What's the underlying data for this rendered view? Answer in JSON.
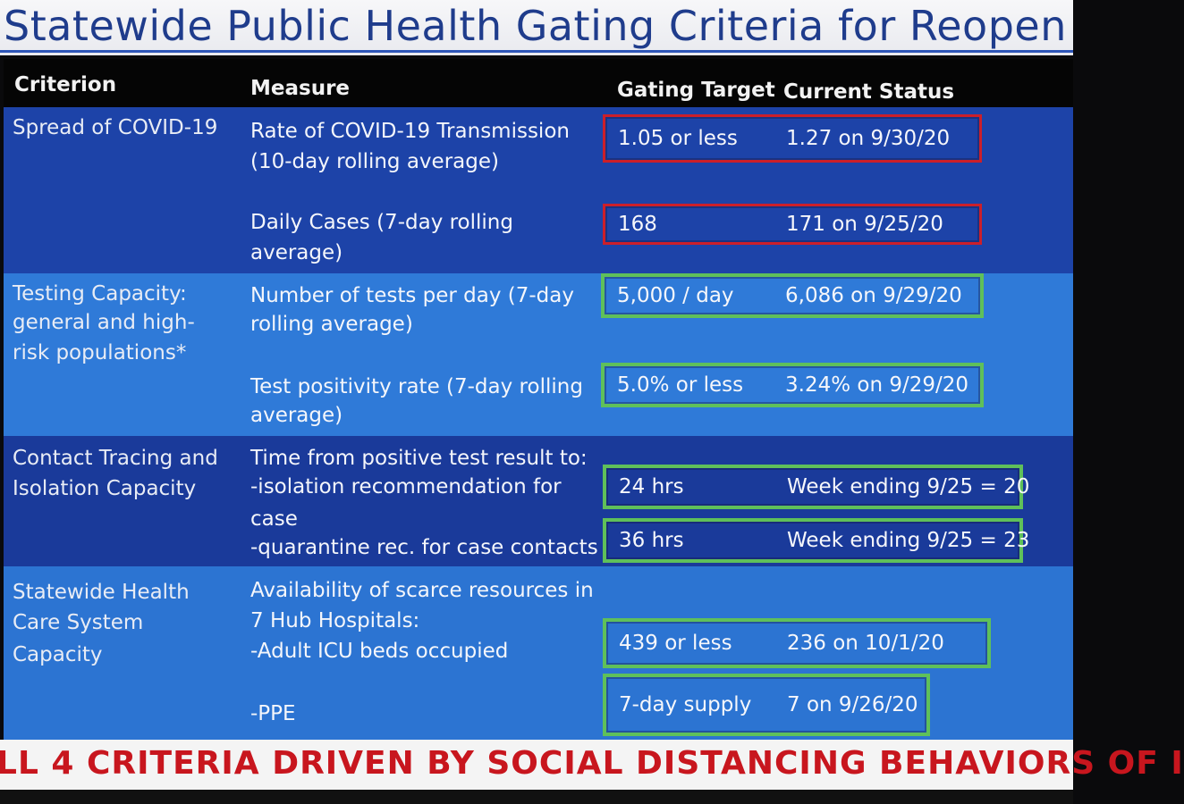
{
  "title": "Statewide Public Health Gating Criteria for Reopen",
  "headers": {
    "criterion": "Criterion",
    "measure": "Measure",
    "target": "Gating Target",
    "status": "Current Status"
  },
  "sections": [
    {
      "criterion": [
        "Spread of COVID-19"
      ],
      "measures": [
        {
          "lines": [
            "Rate of COVID-19 Transmission",
            "(10-day rolling average)"
          ],
          "target": "1.05 or less",
          "status": "1.27 on 9/30/20",
          "box_color": "red"
        },
        {
          "lines": [
            "Daily Cases (7-day rolling",
            "average)"
          ],
          "target": "168",
          "status": "171 on 9/25/20",
          "box_color": "red"
        }
      ]
    },
    {
      "criterion": [
        "Testing Capacity:",
        "general and high-",
        "risk populations*"
      ],
      "measures": [
        {
          "lines": [
            "Number of tests per day (7-day",
            "rolling average)"
          ],
          "target": "5,000 / day",
          "status": "6,086 on 9/29/20",
          "box_color": "green"
        },
        {
          "lines": [
            "Test positivity rate  (7-day rolling",
            "average)"
          ],
          "target": "5.0% or less",
          "status": "3.24% on 9/29/20",
          "box_color": "green"
        }
      ]
    },
    {
      "criterion": [
        "Contact Tracing and",
        "Isolation Capacity"
      ],
      "intro": "Time from positive test result to:",
      "measures": [
        {
          "lines": [
            "-isolation recommendation for",
            "case"
          ],
          "target": "24 hrs",
          "status": "Week ending 9/25 = 20",
          "box_color": "green"
        },
        {
          "lines": [
            "-quarantine rec. for case contacts"
          ],
          "target": "36 hrs",
          "status": "Week ending 9/25 = 23",
          "box_color": "green"
        }
      ]
    },
    {
      "criterion": [
        "Statewide Health",
        "Care System",
        "Capacity"
      ],
      "intro": [
        "Availability of scarce resources in",
        "7 Hub Hospitals:"
      ],
      "measures": [
        {
          "lines": [
            "-Adult ICU beds occupied"
          ],
          "target": "439 or less",
          "status": "236 on 10/1/20",
          "box_color": "green"
        },
        {
          "lines": [
            "-PPE"
          ],
          "target": "7-day supply",
          "status": "7 on 9/26/20",
          "box_color": "green"
        }
      ]
    }
  ],
  "banner": "LL 4 CRITERIA DRIVEN BY SOCIAL DISTANCING BEHAVIORS OF I",
  "colors": {
    "title_blue": "#1f3c8c",
    "table_dark_blue": "#1d43a8",
    "table_light_blue": "#2f7ad8",
    "box_red": "#cc1f2a",
    "box_green": "#5fc05a",
    "banner_red": "#c8161e"
  }
}
